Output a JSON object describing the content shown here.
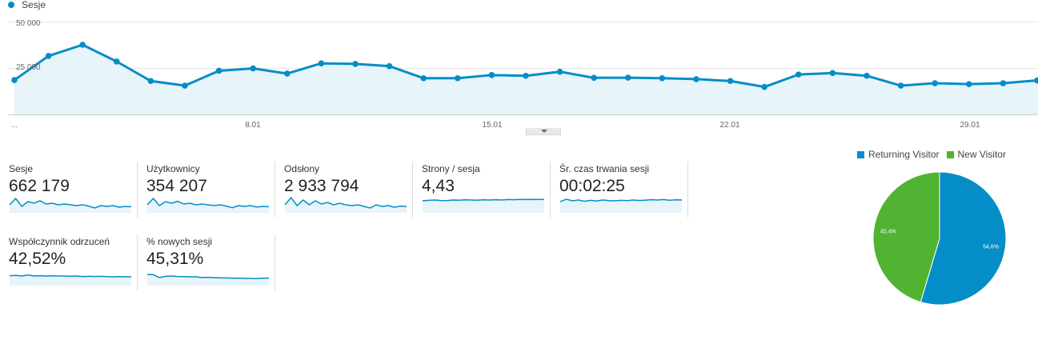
{
  "legend": {
    "series_name": "Sesje",
    "color": "#058dc7"
  },
  "chart_data": [
    {
      "type": "area",
      "series": [
        {
          "name": "Sesje",
          "values": [
            18500,
            31500,
            37500,
            28500,
            18000,
            15500,
            23500,
            24800,
            22000,
            27500,
            27200,
            26000,
            19500,
            19500,
            21200,
            20800,
            23000,
            19700,
            19800,
            19500,
            19000,
            18000,
            14800,
            21500,
            22300,
            20800,
            15500,
            16800,
            16300,
            16800,
            18300
          ]
        }
      ],
      "x_tick_labels": [
        "...",
        "8.01",
        "15.01",
        "22.01",
        "29.01"
      ],
      "y_tick_labels": [
        "50 000",
        "25 000"
      ],
      "ylim": [
        0,
        50000
      ],
      "grid": "horizontal",
      "color": "#058dc7",
      "fill": "#e7f4fa"
    },
    {
      "type": "pie",
      "labels": [
        "Returning Visitor",
        "New Visitor"
      ],
      "values": [
        54.6,
        45.4
      ],
      "value_labels": [
        "54,6%",
        "45,4%"
      ],
      "colors": [
        "#058dc7",
        "#50b432"
      ],
      "legend_position": "top"
    }
  ],
  "metrics": [
    {
      "label": "Sesje",
      "value": "662 179",
      "spark": [
        0.5,
        0.9,
        0.4,
        0.7,
        0.6,
        0.75,
        0.55,
        0.6,
        0.5,
        0.55,
        0.5,
        0.45,
        0.5,
        0.42,
        0.3,
        0.45,
        0.4,
        0.45,
        0.35,
        0.4,
        0.38
      ]
    },
    {
      "label": "Użytkownicy",
      "value": "354 207",
      "spark": [
        0.5,
        0.9,
        0.45,
        0.7,
        0.6,
        0.72,
        0.55,
        0.6,
        0.5,
        0.55,
        0.5,
        0.45,
        0.5,
        0.42,
        0.32,
        0.45,
        0.4,
        0.45,
        0.36,
        0.4,
        0.38
      ]
    },
    {
      "label": "Odsłony",
      "value": "2 933 794",
      "spark": [
        0.5,
        0.95,
        0.45,
        0.8,
        0.5,
        0.75,
        0.55,
        0.65,
        0.5,
        0.6,
        0.5,
        0.45,
        0.5,
        0.4,
        0.3,
        0.5,
        0.4,
        0.45,
        0.35,
        0.42,
        0.4
      ]
    },
    {
      "label": "Strony / sesja",
      "value": "4,43",
      "spark": [
        0.75,
        0.78,
        0.8,
        0.77,
        0.76,
        0.8,
        0.79,
        0.81,
        0.8,
        0.79,
        0.81,
        0.8,
        0.82,
        0.8,
        0.83,
        0.82,
        0.84,
        0.83,
        0.84,
        0.83,
        0.84
      ]
    },
    {
      "label": "Śr. czas trwania sesji",
      "value": "00:02:25",
      "spark": [
        0.7,
        0.85,
        0.75,
        0.8,
        0.72,
        0.78,
        0.74,
        0.8,
        0.76,
        0.75,
        0.78,
        0.76,
        0.8,
        0.77,
        0.79,
        0.82,
        0.8,
        0.83,
        0.78,
        0.81,
        0.8
      ]
    },
    {
      "label": "Współczynnik odrzuceń",
      "value": "42,52%",
      "spark": [
        0.62,
        0.64,
        0.6,
        0.66,
        0.6,
        0.62,
        0.6,
        0.61,
        0.6,
        0.6,
        0.59,
        0.6,
        0.56,
        0.58,
        0.57,
        0.58,
        0.56,
        0.55,
        0.56,
        0.55,
        0.55
      ]
    },
    {
      "label": "% nowych sesji",
      "value": "45,31%",
      "spark": [
        0.7,
        0.68,
        0.5,
        0.58,
        0.6,
        0.57,
        0.56,
        0.55,
        0.55,
        0.5,
        0.52,
        0.5,
        0.48,
        0.48,
        0.46,
        0.47,
        0.45,
        0.45,
        0.44,
        0.46,
        0.47
      ]
    }
  ]
}
